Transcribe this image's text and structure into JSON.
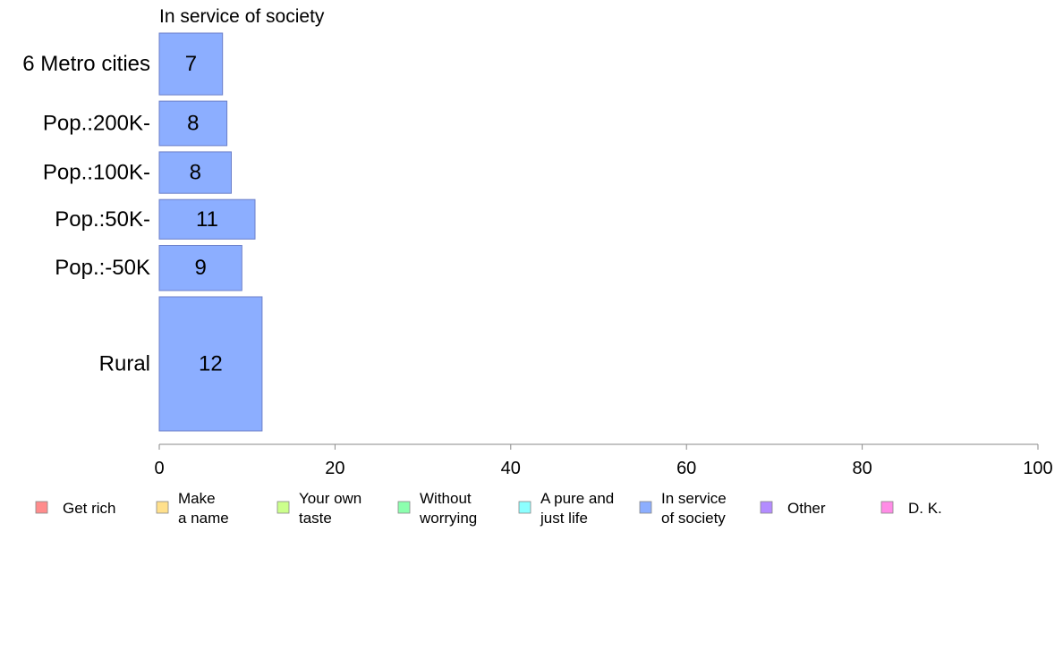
{
  "chart_data": {
    "type": "bar",
    "orientation": "horizontal",
    "title": "In service of society",
    "xlabel": "",
    "ylabel": "",
    "xlim": [
      0,
      100
    ],
    "ticks": [
      0,
      20,
      40,
      60,
      80,
      100
    ],
    "tick_labels": [
      "0",
      "20",
      "40",
      "60",
      "80",
      "100"
    ],
    "grid": false,
    "legend_position": "bottom",
    "bar_color": "#8caeff",
    "bar_stroke": "#6b7fc9",
    "categories": [
      "6 Metro cities",
      "Pop.:200K-",
      "Pop.:100K-",
      "Pop.:50K-",
      "Pop.:-50K",
      "Rural"
    ],
    "values": [
      7.2,
      7.7,
      8.2,
      10.9,
      9.4,
      11.7
    ],
    "value_labels": [
      "7",
      "8",
      "8",
      "11",
      "9",
      "12"
    ],
    "bar_weights": [
      1.0,
      0.72,
      0.67,
      0.64,
      0.73,
      2.17
    ],
    "legend": [
      {
        "lines": [
          "Get rich"
        ],
        "color": "#ff8c8c"
      },
      {
        "lines": [
          "Make",
          "a name"
        ],
        "color": "#ffe08c"
      },
      {
        "lines": [
          "Your own",
          "taste"
        ],
        "color": "#ccff8c"
      },
      {
        "lines": [
          "Without",
          "worrying"
        ],
        "color": "#8cffae"
      },
      {
        "lines": [
          "A pure and",
          "just life"
        ],
        "color": "#8cffff"
      },
      {
        "lines": [
          "In service",
          "of society"
        ],
        "color": "#8caeff"
      },
      {
        "lines": [
          "Other"
        ],
        "color": "#b38cff"
      },
      {
        "lines": [
          "D. K."
        ],
        "color": "#ff8ce6"
      }
    ]
  }
}
